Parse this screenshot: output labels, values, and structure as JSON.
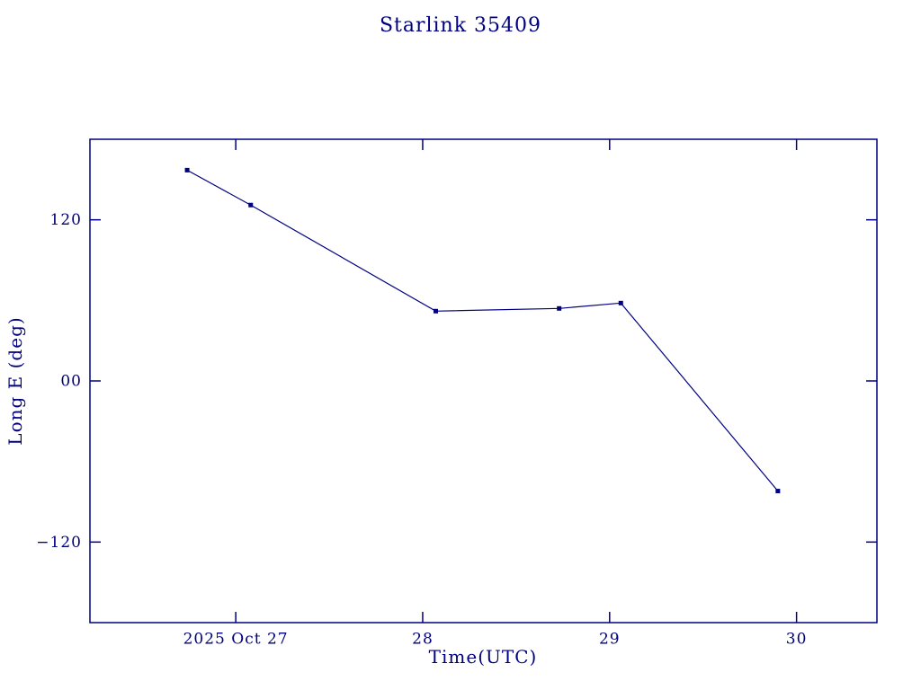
{
  "page": {
    "title": "Starlink 35409"
  },
  "chart_data": {
    "type": "line",
    "title": "Starlink 35409",
    "xlabel": "Time(UTC)",
    "ylabel": "Long E (deg)",
    "line_color": "#000080",
    "marker": "square",
    "marker_color": "#000080",
    "background": "#ffffff",
    "grid": false,
    "legend": "none",
    "x_unit": "day of October 2025 (UTC)",
    "xlim": [
      26.22,
      30.43
    ],
    "ylim": [
      -180,
      180
    ],
    "xticks": [
      {
        "value": 27,
        "label": "2025 Oct 27"
      },
      {
        "value": 28,
        "label": "28"
      },
      {
        "value": 29,
        "label": "29"
      },
      {
        "value": 30,
        "label": "30"
      }
    ],
    "yticks": [
      {
        "value": -120,
        "label": "−120"
      },
      {
        "value": 0,
        "label": "00"
      },
      {
        "value": 120,
        "label": "120"
      }
    ],
    "series": [
      {
        "name": "Long E (deg)",
        "x": [
          26.74,
          27.08,
          28.07,
          28.73,
          29.06,
          29.9
        ],
        "y": [
          157,
          131,
          52,
          54,
          58,
          -82
        ]
      }
    ]
  }
}
